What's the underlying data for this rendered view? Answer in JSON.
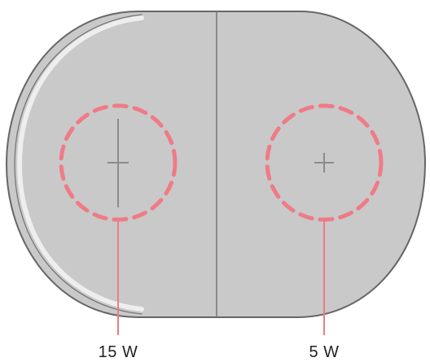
{
  "colors": {
    "pad_fill": "#c9c9c9",
    "pad_outline": "#666666",
    "divider": "#7a7a7a",
    "edge_highlight": "#eeeeee",
    "marker": "#8c8c8c",
    "zone_accent": "#ef7b86",
    "label_text": "#222222"
  },
  "icons": {
    "crosshair": "plus-crosshair-icon"
  },
  "zones": [
    {
      "label": "15 W",
      "marker": "long-vertical-crosshair"
    },
    {
      "label": "5 W",
      "marker": "small-plus-crosshair"
    }
  ]
}
